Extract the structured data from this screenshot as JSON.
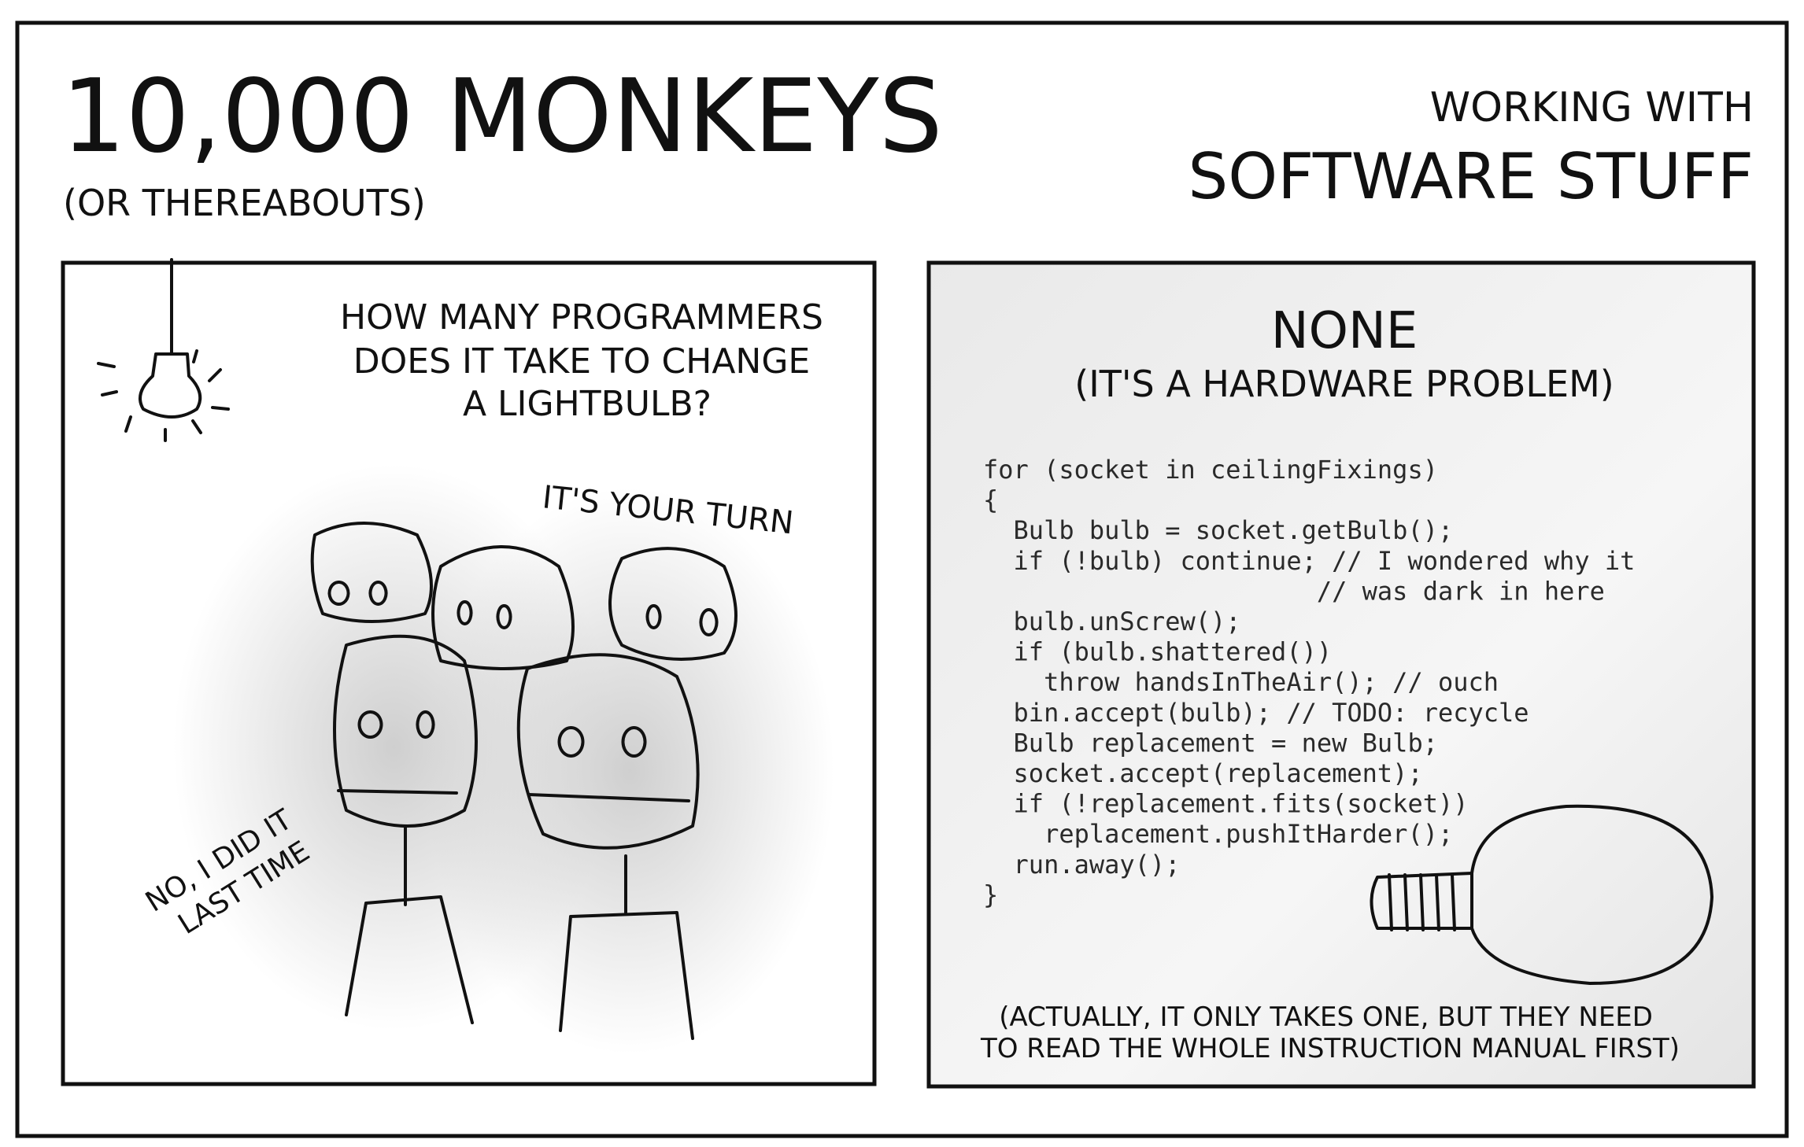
{
  "header": {
    "title": "10,000 MONKEYS",
    "subtitle": "(OR THEREABOUTS)",
    "tagline_small": "WORKING WITH",
    "tagline_large": "SOFTWARE STUFF"
  },
  "panel_1": {
    "question": [
      "HOW MANY PROGRAMMERS",
      "DOES IT TAKE TO CHANGE",
      "A LIGHTBULB?"
    ],
    "speech_1": "IT'S YOUR TURN",
    "speech_2": [
      "NO, I DID IT",
      "LAST TIME"
    ]
  },
  "panel_2": {
    "answer": "NONE",
    "answer_note": "(IT'S A HARDWARE PROBLEM)",
    "code": [
      "for (socket in ceilingFixings)",
      "{",
      "  Bulb bulb = socket.getBulb();",
      "  if (!bulb) continue; // I wondered why it",
      "                      // was dark in here",
      "  bulb.unScrew();",
      "  if (bulb.shattered())",
      "    throw handsInTheAir(); // ouch",
      "  bin.accept(bulb); // TODO: recycle",
      "  Bulb replacement = new Bulb;",
      "  socket.accept(replacement);",
      "  if (!replacement.fits(socket))",
      "    replacement.pushItHarder();",
      "  run.away();",
      "}"
    ],
    "footnote": [
      "(ACTUALLY, IT ONLY TAKES ONE, BUT THEY NEED",
      "TO READ THE WHOLE INSTRUCTION MANUAL FIRST)"
    ]
  }
}
